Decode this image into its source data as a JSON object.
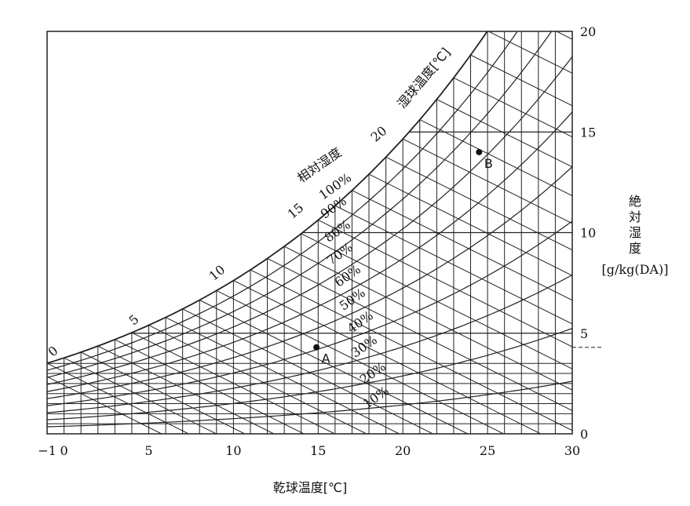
{
  "chart_data": {
    "type": "psychrometric",
    "xlabel": "乾球温度[℃]",
    "xlim": [
      -1,
      30
    ],
    "xticks": [
      -1,
      0,
      5,
      10,
      15,
      20,
      25,
      30
    ],
    "ylim": [
      0,
      20
    ],
    "yticks": [
      0,
      5,
      10,
      15,
      20
    ],
    "ylabel_lines": [
      "絶",
      "対",
      "湿",
      "度"
    ],
    "ylabel_unit": "[g/kg(DA)]",
    "wet_bulb_title": "湿球温度[℃]",
    "wet_bulb_values": [
      0,
      5,
      10,
      15,
      20
    ],
    "wet_bulb_labels": [
      "0",
      "5",
      "10",
      "15",
      "20"
    ],
    "rh_title": "相対湿度",
    "rh_values": [
      100,
      90,
      80,
      70,
      60,
      50,
      40,
      30,
      20,
      10
    ],
    "rh_labels": [
      "100%",
      "90%",
      "80%",
      "70%",
      "60%",
      "50%",
      "40%",
      "30%",
      "20%",
      "10%"
    ],
    "grid_x_lines": true,
    "grid_y_major_lines": [
      5,
      10,
      15
    ],
    "points": [
      {
        "name": "A",
        "x": 14.9,
        "y": 4.3
      },
      {
        "name": "B",
        "x": 24.5,
        "y": 14.0
      }
    ]
  }
}
